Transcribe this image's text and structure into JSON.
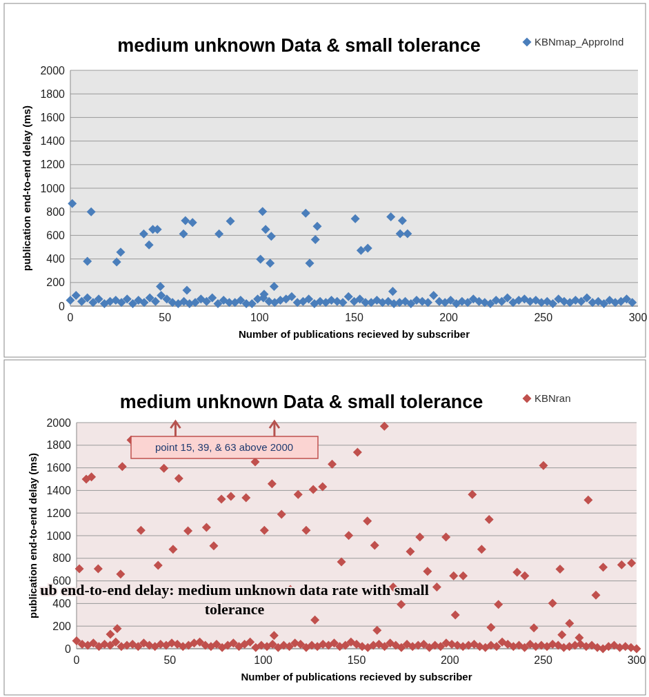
{
  "chart_data": [
    {
      "type": "scatter",
      "title": "medium unknown Data & small tolerance",
      "xlabel": "Number of publications  recieved by subscriber",
      "ylabel": "publication end-to-end delay (ms)",
      "xlim": [
        0,
        300
      ],
      "xticks": [
        0,
        50,
        100,
        150,
        200,
        250,
        300
      ],
      "ylim": [
        0,
        2000
      ],
      "yticks": [
        0,
        200,
        400,
        600,
        800,
        1000,
        1200,
        1400,
        1600,
        1800,
        2000
      ],
      "grid": "y",
      "legend": "top right",
      "marker": "diamond",
      "series": [
        {
          "name": "KBNmap_ApproInd",
          "color": "#4a7ebb",
          "x": [
            1,
            11,
            9,
            24.5,
            26.6,
            38.8,
            41.6,
            43.6,
            46,
            47.6,
            60.8,
            59.8,
            64.6,
            61.6,
            78.6,
            84.6,
            101.6,
            100.5,
            103.2,
            106.2,
            105.6,
            107.7,
            102.4,
            124.4,
            130.5,
            129.5,
            126.5,
            150.6,
            153.6,
            157.2,
            169.4,
            175.5,
            174.3,
            178.2,
            170.4,
            0,
            3,
            6,
            9,
            12,
            15,
            18,
            21,
            24,
            27,
            30,
            33,
            36,
            39,
            42,
            45,
            48,
            51,
            54,
            57,
            60,
            63,
            66,
            69,
            72,
            75,
            78,
            81,
            84,
            87,
            90,
            93,
            96,
            99,
            102,
            105,
            108,
            111,
            114,
            117,
            120,
            123,
            126,
            129,
            132,
            135,
            138,
            141,
            144,
            147,
            150,
            153,
            156,
            159,
            162,
            165,
            168,
            171,
            174,
            177,
            180,
            183,
            186,
            189,
            192,
            195,
            198,
            201,
            204,
            207,
            210,
            213,
            216,
            219,
            222,
            225,
            228,
            231,
            234,
            237,
            240,
            243,
            246,
            249,
            252,
            255,
            258,
            261,
            264,
            267,
            270,
            273,
            276,
            279,
            282,
            285,
            288,
            291,
            294,
            297
          ],
          "values": [
            870,
            800,
            380,
            374,
            458,
            612,
            519,
            651,
            651,
            166,
            725,
            612,
            709,
            134,
            612,
            721,
            803,
            398,
            651,
            592,
            364,
            166,
            101,
            788,
            677,
            565,
            364,
            741,
            472,
            491,
            758,
            725,
            614,
            614,
            125,
            50,
            90,
            40,
            70,
            30,
            60,
            20,
            40,
            50,
            30,
            60,
            20,
            50,
            30,
            70,
            40,
            90,
            60,
            30,
            20,
            40,
            20,
            30,
            60,
            40,
            70,
            20,
            50,
            30,
            30,
            50,
            20,
            20,
            60,
            70,
            40,
            30,
            50,
            60,
            80,
            30,
            40,
            60,
            20,
            40,
            30,
            50,
            40,
            30,
            80,
            40,
            60,
            30,
            30,
            50,
            30,
            40,
            20,
            30,
            40,
            20,
            50,
            40,
            30,
            90,
            40,
            30,
            50,
            20,
            40,
            30,
            60,
            40,
            30,
            20,
            50,
            40,
            70,
            30,
            50,
            60,
            40,
            50,
            30,
            40,
            20,
            60,
            40,
            30,
            50,
            40,
            70,
            30,
            40,
            20,
            50,
            30,
            40,
            60,
            30
          ]
        }
      ]
    },
    {
      "type": "scatter",
      "title": "medium unknown Data & small tolerance",
      "xlabel": "Number of publications  recieved by subscriber",
      "ylabel": "publication end-to-end delay (ms)",
      "xlim": [
        0,
        300
      ],
      "xticks": [
        0,
        50,
        100,
        150,
        200,
        250,
        300
      ],
      "ylim": [
        0,
        2000
      ],
      "yticks": [
        0,
        200,
        400,
        600,
        800,
        1000,
        1200,
        1400,
        1600,
        1800,
        2000
      ],
      "grid": "y",
      "legend": "top right",
      "marker": "diamond",
      "annotations": [
        "point 15, 39, & 63 above 2000",
        "ub end-to-end delay: medium unknown data rate with small tolerance"
      ],
      "series": [
        {
          "name": "KBNran",
          "color": "#c0504d",
          "x": [
            29.2,
            1.5,
            5.2,
            8,
            11.6,
            24.5,
            23.6,
            34.5,
            43.7,
            46.8,
            51.7,
            54.8,
            59.7,
            69.6,
            73.5,
            77.6,
            82.7,
            90.8,
            95.7,
            100.6,
            104.7,
            109.8,
            114.5,
            118.7,
            123,
            126.8,
            131.8,
            127.7,
            136.9,
            141.9,
            145.8,
            150.5,
            18.1,
            21.8,
            105.8,
            164.9,
            155.8,
            159.7,
            161,
            169.6,
            173.9,
            178.8,
            183.9,
            188,
            193,
            197.9,
            202,
            207.1,
            202.9,
            212,
            217,
            221,
            222,
            226,
            236,
            240.1,
            245,
            250.1,
            255,
            259,
            260,
            264.1,
            274.1,
            278.2,
            282.1,
            292,
            297.3,
            269.3,
            0,
            3,
            6,
            9,
            12,
            15,
            18,
            21,
            24,
            27,
            30,
            33,
            36,
            39,
            42,
            45,
            48,
            51,
            54,
            57,
            60,
            63,
            66,
            69,
            72,
            75,
            78,
            81,
            84,
            87,
            90,
            93,
            96,
            99,
            102,
            105,
            108,
            111,
            114,
            117,
            120,
            123,
            126,
            129,
            132,
            135,
            138,
            141,
            144,
            147,
            150,
            153,
            156,
            159,
            162,
            165,
            168,
            171,
            174,
            177,
            180,
            183,
            186,
            189,
            192,
            195,
            198,
            201,
            204,
            207,
            210,
            213,
            216,
            219,
            222,
            225,
            228,
            231,
            234,
            237,
            240,
            243,
            246,
            249,
            252,
            255,
            258,
            261,
            264,
            267,
            270,
            273,
            276,
            279,
            282,
            285,
            288,
            291,
            294,
            297,
            300
          ],
          "values": [
            1846,
            707,
            1500,
            1520,
            707,
            1612,
            660,
            1047,
            738,
            1596,
            880,
            1506,
            1043,
            1073,
            910,
            1323,
            1348,
            1335,
            1652,
            1047,
            1459,
            1189,
            524,
            1364,
            1047,
            1408,
            1433,
            254,
            1632,
            768,
            1002,
            1738,
            128,
            179,
            118,
            1968,
            1130,
            915,
            163,
            545,
            392,
            860,
            988,
            685,
            545,
            988,
            645,
            645,
            299,
            1364,
            880,
            1144,
            189,
            392,
            677,
            645,
            185,
            1620,
            402,
            705,
            124,
            224,
            1315,
            474,
            721,
            742,
            758,
            98,
            70,
            40,
            30,
            50,
            20,
            40,
            30,
            60,
            20,
            30,
            40,
            20,
            50,
            30,
            20,
            40,
            30,
            50,
            40,
            20,
            30,
            50,
            60,
            30,
            20,
            40,
            10,
            30,
            50,
            20,
            40,
            60,
            10,
            30,
            20,
            40,
            10,
            30,
            20,
            50,
            40,
            10,
            30,
            20,
            40,
            30,
            50,
            20,
            30,
            60,
            40,
            20,
            10,
            30,
            40,
            20,
            50,
            30,
            10,
            40,
            20,
            30,
            40,
            10,
            30,
            20,
            50,
            40,
            30,
            20,
            30,
            40,
            20,
            10,
            30,
            20,
            60,
            40,
            20,
            30,
            10,
            40,
            20,
            30,
            20,
            40,
            30,
            10,
            20,
            30,
            40,
            20,
            30,
            10,
            0,
            20,
            30,
            10,
            20,
            10,
            0
          ]
        }
      ]
    }
  ]
}
